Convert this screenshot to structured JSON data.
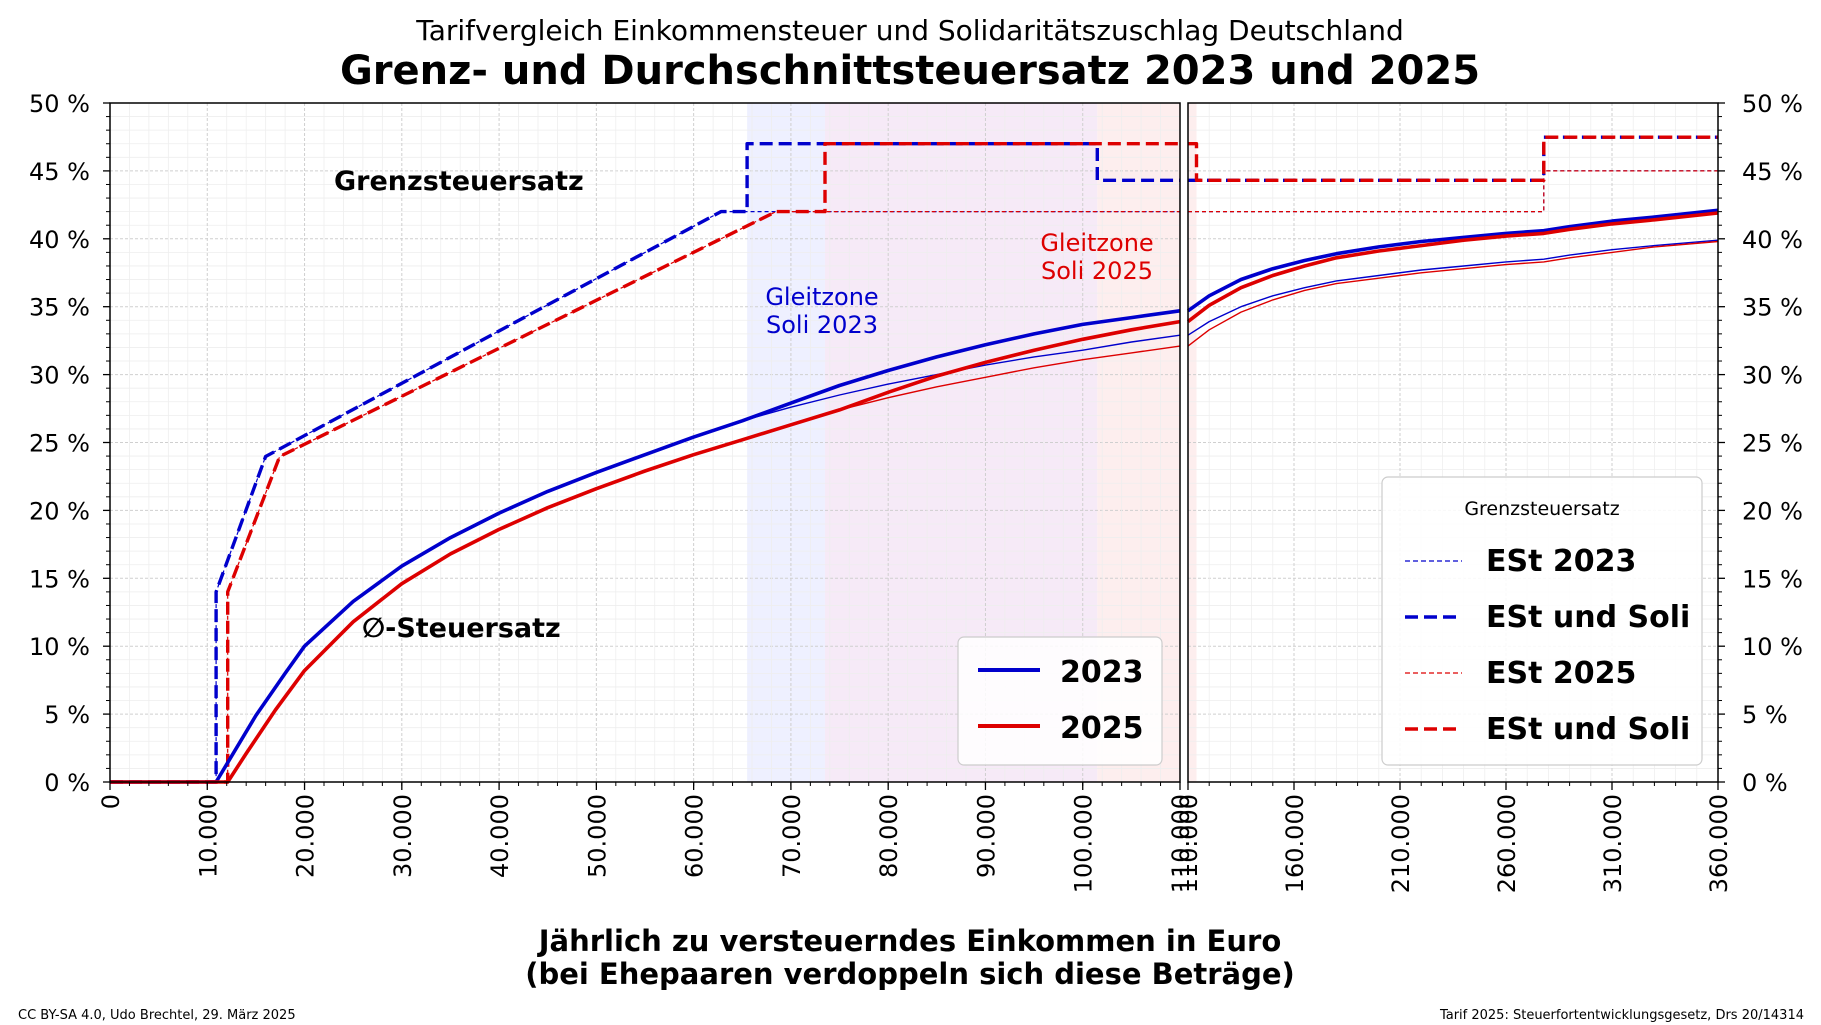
{
  "header": {
    "supertitle": "Tarifvergleich Einkommensteuer und Solidaritätszuschlag Deutschland",
    "title": "Grenz- und Durchschnittsteuersatz 2023 und 2025"
  },
  "xlabel_line1": "Jährlich zu versteuerndes Einkommen in Euro",
  "xlabel_line2": "(bei Ehepaaren verdoppeln sich diese Beträge)",
  "footer": {
    "left": "CC BY-SA 4.0, Udo Brechtel, 29. März 2025",
    "right": "Tarif 2025: Steuerfortentwicklungsgesetz, Drs 20/14314"
  },
  "annotations": {
    "grenz": "Grenzsteuersatz",
    "avg": "∅-Steuersatz",
    "zone2023_line1": "Gleitzone",
    "zone2023_line2": "Soli 2023",
    "zone2025_line1": "Gleitzone",
    "zone2025_line2": "Soli 2025"
  },
  "legend_avg": {
    "items": [
      "2023",
      "2025"
    ]
  },
  "legend_grenz": {
    "title": "Grenzsteuersatz",
    "items": [
      "ESt 2023",
      "ESt und Soli",
      "ESt 2025",
      "ESt und Soli"
    ]
  },
  "colors": {
    "c2023": "#0000cc",
    "c2025": "#dd0000",
    "zone2023": "#eef0ff",
    "zone_both": "#f6eaf7",
    "zone2025": "#fdeeee"
  },
  "chart_data": {
    "type": "line",
    "y_ticks": [
      "0 %",
      "5 %",
      "10 %",
      "15 %",
      "20 %",
      "25 %",
      "30 %",
      "35 %",
      "40 %",
      "45 %",
      "50 %"
    ],
    "ylim": [
      0,
      50
    ],
    "left_panel": {
      "xlim": [
        0,
        110000
      ],
      "x_ticks": [
        "0",
        "10.000",
        "20.000",
        "30.000",
        "40.000",
        "50.000",
        "60.000",
        "70.000",
        "80.000",
        "90.000",
        "100.000",
        "110.000"
      ],
      "gleitzone_2023": [
        65500,
        101500
      ],
      "gleitzone_2025": [
        73500,
        110000
      ],
      "series": [
        {
          "name": "ESt 2023",
          "style": "thin-dashed",
          "color": "#0000cc",
          "points": [
            [
              0,
              0
            ],
            [
              10908,
              0
            ],
            [
              10908,
              14
            ],
            [
              15999,
              23.97
            ],
            [
              62809,
              42
            ],
            [
              110000,
              42
            ]
          ]
        },
        {
          "name": "ESt und Soli",
          "style": "dashed",
          "color": "#0000cc",
          "points": [
            [
              0,
              0
            ],
            [
              10908,
              0
            ],
            [
              10908,
              14
            ],
            [
              15999,
              23.97
            ],
            [
              62809,
              42
            ],
            [
              65500,
              42
            ],
            [
              65500,
              47
            ],
            [
              101500,
              47
            ],
            [
              101500,
              44.31
            ],
            [
              110000,
              44.31
            ]
          ]
        },
        {
          "name": "ESt 2025",
          "style": "thin-dashed",
          "color": "#dd0000",
          "points": [
            [
              0,
              0
            ],
            [
              12096,
              0
            ],
            [
              12096,
              14
            ],
            [
              17443,
              23.97
            ],
            [
              68480,
              42
            ],
            [
              110000,
              42
            ]
          ]
        },
        {
          "name": "ESt und Soli",
          "style": "dashed",
          "color": "#dd0000",
          "points": [
            [
              0,
              0
            ],
            [
              12096,
              0
            ],
            [
              12096,
              14
            ],
            [
              17443,
              23.97
            ],
            [
              68480,
              42
            ],
            [
              73500,
              42
            ],
            [
              73500,
              47
            ],
            [
              110000,
              47
            ]
          ]
        },
        {
          "name": "2023",
          "style": "thick",
          "color": "#0000cc",
          "points": [
            [
              0,
              0
            ],
            [
              10908,
              0
            ],
            [
              12000,
              1.3
            ],
            [
              15000,
              4.9
            ],
            [
              18000,
              8.0
            ],
            [
              20000,
              10.0
            ],
            [
              25000,
              13.3
            ],
            [
              30000,
              15.9
            ],
            [
              35000,
              18.0
            ],
            [
              40000,
              19.8
            ],
            [
              45000,
              21.4
            ],
            [
              50000,
              22.8
            ],
            [
              55000,
              24.1
            ],
            [
              60000,
              25.4
            ],
            [
              65000,
              26.6
            ],
            [
              70000,
              27.9
            ],
            [
              75000,
              29.2
            ],
            [
              80000,
              30.3
            ],
            [
              85000,
              31.3
            ],
            [
              90000,
              32.2
            ],
            [
              95000,
              33.0
            ],
            [
              100000,
              33.7
            ],
            [
              105000,
              34.2
            ],
            [
              110000,
              34.7
            ]
          ]
        },
        {
          "name": "2023 ESt",
          "style": "thin",
          "color": "#0000cc",
          "points": [
            [
              65000,
              26.6
            ],
            [
              70000,
              27.6
            ],
            [
              75000,
              28.5
            ],
            [
              80000,
              29.3
            ],
            [
              85000,
              30.0
            ],
            [
              90000,
              30.7
            ],
            [
              95000,
              31.3
            ],
            [
              100000,
              31.8
            ],
            [
              105000,
              32.4
            ],
            [
              110000,
              32.9
            ]
          ]
        },
        {
          "name": "2025",
          "style": "thick",
          "color": "#dd0000",
          "points": [
            [
              0,
              0
            ],
            [
              12096,
              0
            ],
            [
              14000,
              2.1
            ],
            [
              17000,
              5.3
            ],
            [
              20000,
              8.2
            ],
            [
              25000,
              11.8
            ],
            [
              30000,
              14.6
            ],
            [
              35000,
              16.8
            ],
            [
              40000,
              18.6
            ],
            [
              45000,
              20.2
            ],
            [
              50000,
              21.6
            ],
            [
              55000,
              22.9
            ],
            [
              60000,
              24.1
            ],
            [
              65000,
              25.2
            ],
            [
              70000,
              26.3
            ],
            [
              75000,
              27.4
            ],
            [
              80000,
              28.7
            ],
            [
              85000,
              29.9
            ],
            [
              90000,
              30.9
            ],
            [
              95000,
              31.8
            ],
            [
              100000,
              32.6
            ],
            [
              105000,
              33.3
            ],
            [
              110000,
              33.9
            ]
          ]
        },
        {
          "name": "2025 ESt",
          "style": "thin",
          "color": "#dd0000",
          "points": [
            [
              72000,
              26.8
            ],
            [
              75000,
              27.4
            ],
            [
              80000,
              28.3
            ],
            [
              85000,
              29.1
            ],
            [
              90000,
              29.8
            ],
            [
              95000,
              30.5
            ],
            [
              100000,
              31.1
            ],
            [
              105000,
              31.6
            ],
            [
              110000,
              32.1
            ]
          ]
        }
      ]
    },
    "right_panel": {
      "xlim": [
        110000,
        360000
      ],
      "x_ticks": [
        "110.000",
        "160.000",
        "210.000",
        "260.000",
        "310.000",
        "360.000"
      ],
      "series": [
        {
          "name": "ESt 2023",
          "style": "thin-dashed",
          "color": "#0000cc",
          "points": [
            [
              110000,
              42
            ],
            [
              277825,
              42
            ],
            [
              277825,
              45
            ],
            [
              360000,
              45
            ]
          ]
        },
        {
          "name": "ESt und Soli",
          "style": "dashed",
          "color": "#0000cc",
          "points": [
            [
              110000,
              44.31
            ],
            [
              277825,
              44.31
            ],
            [
              277825,
              47.48
            ],
            [
              360000,
              47.48
            ]
          ]
        },
        {
          "name": "ESt 2025",
          "style": "thin-dashed",
          "color": "#dd0000",
          "points": [
            [
              110000,
              42
            ],
            [
              277825,
              42
            ],
            [
              277825,
              45
            ],
            [
              360000,
              45
            ]
          ]
        },
        {
          "name": "ESt und Soli",
          "style": "dashed",
          "color": "#dd0000",
          "points": [
            [
              110000,
              47
            ],
            [
              114000,
              47
            ],
            [
              114000,
              44.31
            ],
            [
              277825,
              44.31
            ],
            [
              277825,
              47.48
            ],
            [
              360000,
              47.48
            ]
          ]
        },
        {
          "name": "2023",
          "style": "thick",
          "color": "#0000cc",
          "points": [
            [
              110000,
              34.7
            ],
            [
              120000,
              35.8
            ],
            [
              135000,
              37.0
            ],
            [
              150000,
              37.8
            ],
            [
              165000,
              38.4
            ],
            [
              180000,
              38.9
            ],
            [
              200000,
              39.4
            ],
            [
              220000,
              39.8
            ],
            [
              240000,
              40.1
            ],
            [
              260000,
              40.4
            ],
            [
              277825,
              40.6
            ],
            [
              290000,
              40.9
            ],
            [
              310000,
              41.3
            ],
            [
              330000,
              41.6
            ],
            [
              360000,
              42.1
            ]
          ]
        },
        {
          "name": "2023 ESt",
          "style": "thin",
          "color": "#0000cc",
          "points": [
            [
              110000,
              32.9
            ],
            [
              120000,
              33.9
            ],
            [
              135000,
              35.0
            ],
            [
              150000,
              35.8
            ],
            [
              165000,
              36.4
            ],
            [
              180000,
              36.9
            ],
            [
              200000,
              37.3
            ],
            [
              220000,
              37.7
            ],
            [
              240000,
              38.0
            ],
            [
              260000,
              38.3
            ],
            [
              277825,
              38.5
            ],
            [
              290000,
              38.8
            ],
            [
              310000,
              39.2
            ],
            [
              330000,
              39.5
            ],
            [
              360000,
              39.9
            ]
          ]
        },
        {
          "name": "2025",
          "style": "thick",
          "color": "#dd0000",
          "points": [
            [
              110000,
              33.9
            ],
            [
              120000,
              35.1
            ],
            [
              135000,
              36.4
            ],
            [
              150000,
              37.3
            ],
            [
              165000,
              38.0
            ],
            [
              180000,
              38.6
            ],
            [
              200000,
              39.1
            ],
            [
              220000,
              39.5
            ],
            [
              240000,
              39.9
            ],
            [
              260000,
              40.2
            ],
            [
              277825,
              40.4
            ],
            [
              290000,
              40.7
            ],
            [
              310000,
              41.1
            ],
            [
              330000,
              41.4
            ],
            [
              360000,
              41.9
            ]
          ]
        },
        {
          "name": "2025 ESt",
          "style": "thin",
          "color": "#dd0000",
          "points": [
            [
              110000,
              32.1
            ],
            [
              120000,
              33.3
            ],
            [
              135000,
              34.6
            ],
            [
              150000,
              35.5
            ],
            [
              165000,
              36.2
            ],
            [
              180000,
              36.7
            ],
            [
              200000,
              37.1
            ],
            [
              220000,
              37.5
            ],
            [
              240000,
              37.8
            ],
            [
              260000,
              38.1
            ],
            [
              277825,
              38.3
            ],
            [
              290000,
              38.6
            ],
            [
              310000,
              39.0
            ],
            [
              330000,
              39.4
            ],
            [
              360000,
              39.8
            ]
          ]
        }
      ]
    }
  }
}
